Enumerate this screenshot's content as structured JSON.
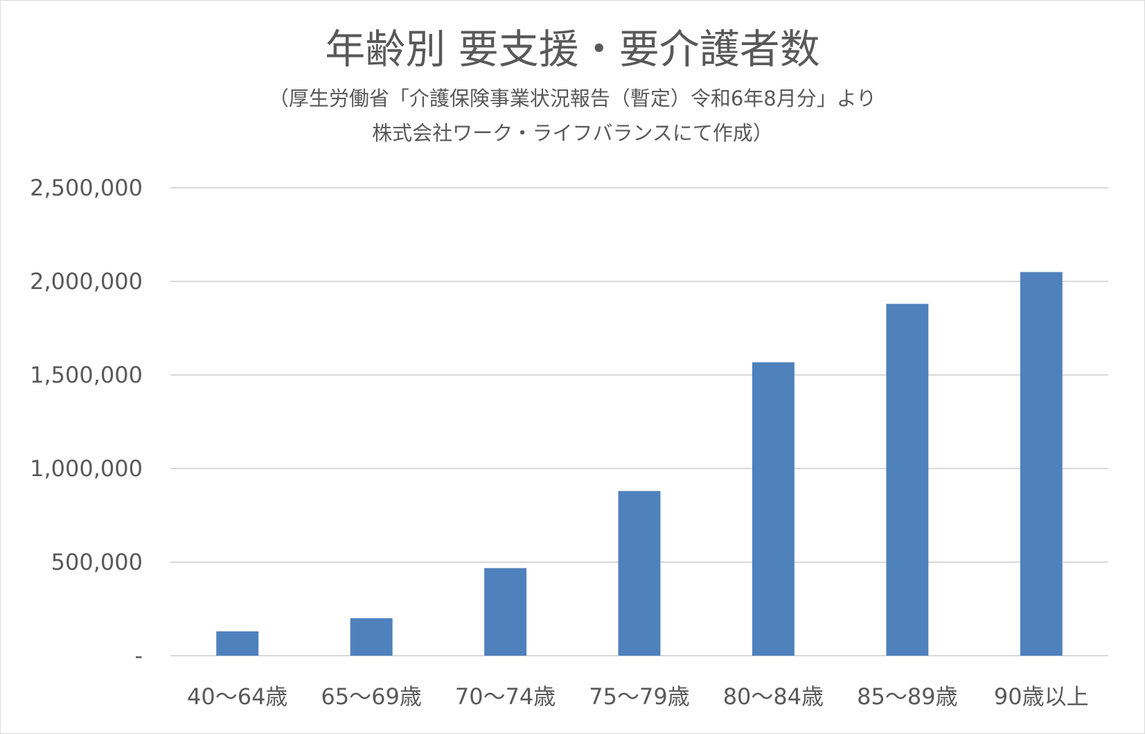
{
  "chart_data": {
    "type": "bar",
    "title": "年齢別 要支援・要介護者数",
    "subtitle_lines": [
      "（厚生労働省「介護保険事業状況報告（暫定）令和6年8月分」より",
      "株式会社ワーク・ライフバランスにて作成）"
    ],
    "categories": [
      "40〜64歳",
      "65〜69歳",
      "70〜74歳",
      "75〜79歳",
      "80〜84歳",
      "85〜89歳",
      "90歳以上"
    ],
    "values": [
      130000,
      200000,
      468000,
      880000,
      1568000,
      1880000,
      2050000
    ],
    "ylim": [
      0,
      2500000
    ],
    "yticks": [
      0,
      500000,
      1000000,
      1500000,
      2000000,
      2500000
    ],
    "ytick_labels": [
      "-",
      "500,000",
      "1,000,000",
      "1,500,000",
      "2,000,000",
      "2,500,000"
    ],
    "grid": true,
    "legend": "none",
    "bar_color": "#4f81bd",
    "grid_color": "#d9d9d9",
    "text_color": "#595959"
  }
}
